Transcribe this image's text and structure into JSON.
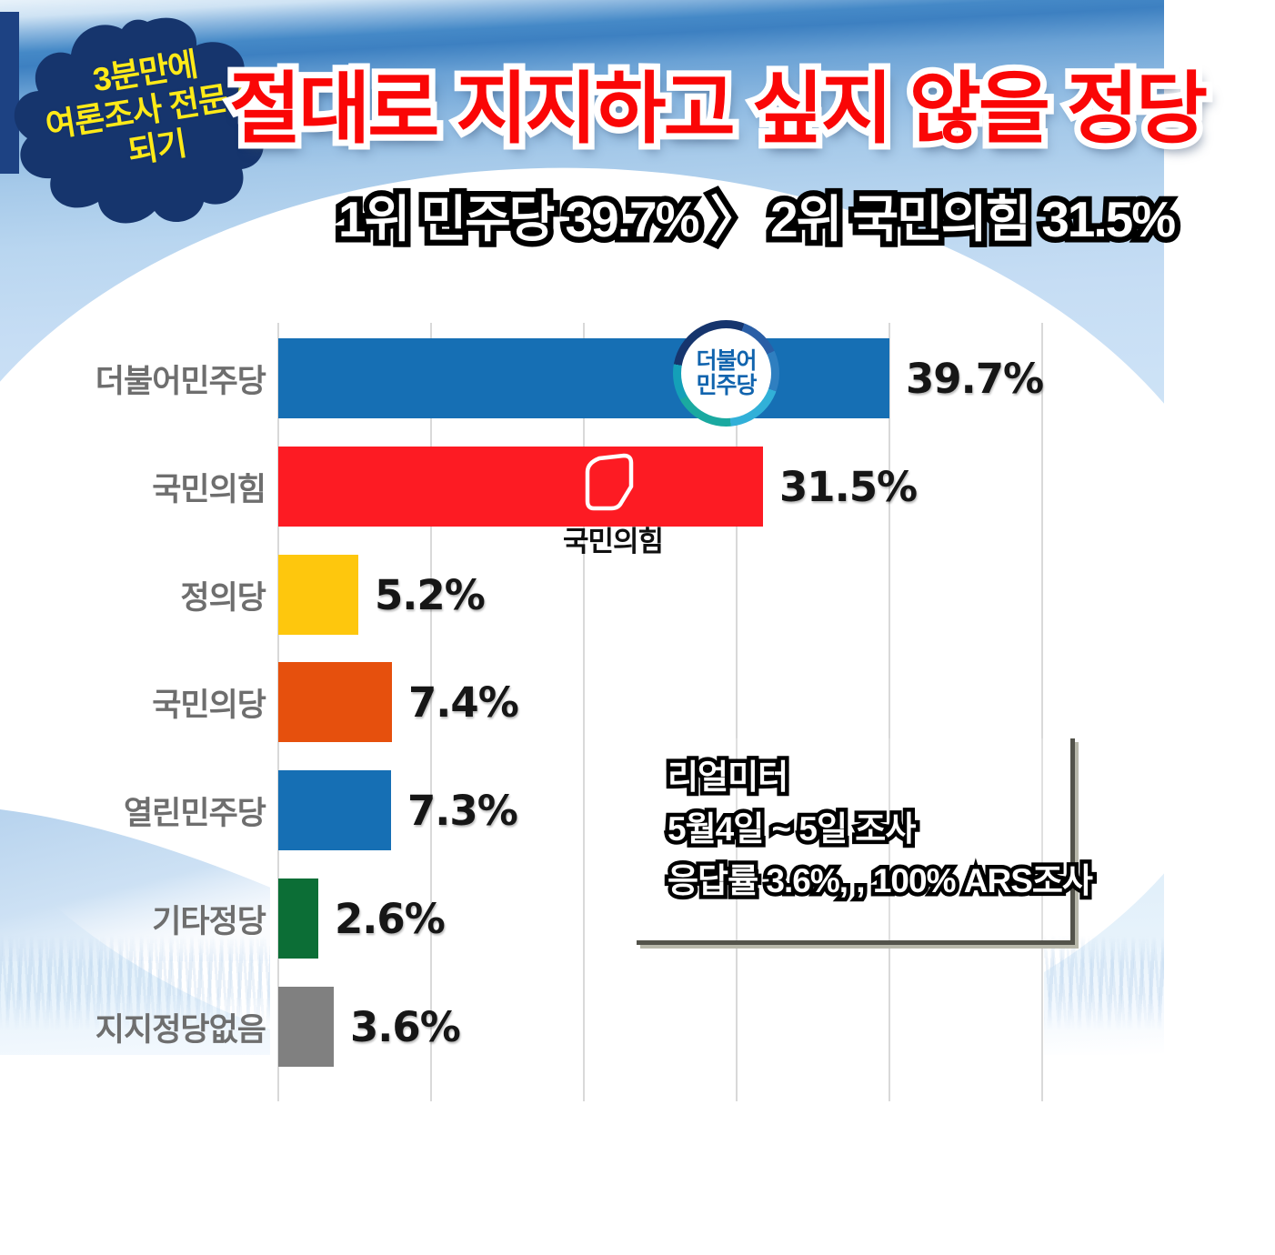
{
  "badge": {
    "lines": [
      "3분만에",
      "여론조사 전문가",
      "되기"
    ]
  },
  "header": {
    "title": "절대로 지지하고 싶지 않을 정당",
    "subtitle": "1위 민주당 39.7% 〉 2위 국민의힘 31.5%"
  },
  "chart_data": {
    "type": "bar",
    "orientation": "horizontal",
    "title": "절대로 지지하고 싶지 않을 정당",
    "categories": [
      "더불어민주당",
      "국민의힘",
      "정의당",
      "국민의당",
      "열린민주당",
      "기타정당",
      "지지정당없음"
    ],
    "values": [
      39.7,
      31.5,
      5.2,
      7.4,
      7.3,
      2.6,
      3.6
    ],
    "value_labels": [
      "39.7%",
      "31.5%",
      "5.2%",
      "7.4%",
      "7.3%",
      "2.6%",
      "3.6%"
    ],
    "bar_colors": [
      "#166FB4",
      "#FD1B23",
      "#FEC70D",
      "#E6500D",
      "#166FB4",
      "#0C6E36",
      "#808080"
    ],
    "xlim": [
      0,
      50
    ],
    "gridline_interval": 10,
    "grid": true,
    "legend": "none"
  },
  "logos": {
    "minjoo": {
      "line1": "더불어",
      "line2": "민주당"
    },
    "ppp": {
      "label": "국민의힘"
    }
  },
  "source_box": {
    "lines": [
      "리얼미터",
      "5월4일 ~ 5일 조사",
      "응답률 3.6%, , 100% ARS조사"
    ]
  },
  "colors": {
    "title_red": "#FA0606",
    "badge_navy": "#16356D",
    "badge_yellow": "#FFEA18",
    "header_blue": "#4589C7",
    "category_label_gray": "#6E6E6E",
    "gridline_gray": "#D9D9D9",
    "minjoo_ring": [
      "#16356D",
      "#2A5EA6",
      "#2F7FC0",
      "#31B0D8",
      "#1AA9A0",
      "#14A0B8"
    ],
    "minjoo_text_blue": "#1164AE",
    "source_border": "#53534B"
  }
}
